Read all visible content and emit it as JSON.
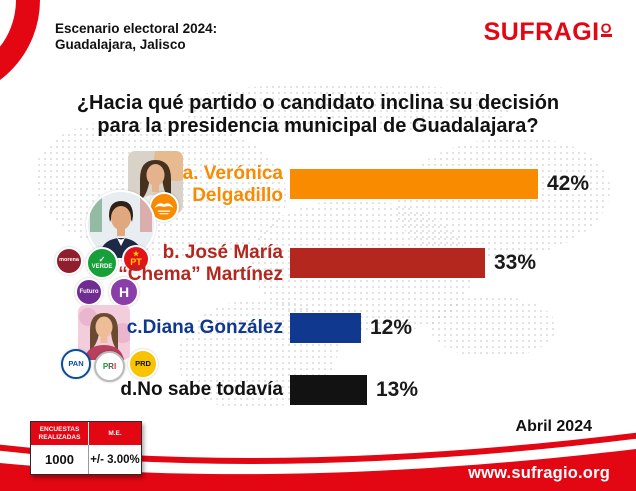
{
  "header": {
    "scenario_line1": "Escenario electoral 2024:",
    "scenario_line2": "Guadalajara, Jalisco",
    "logo_main": "SUFRAGI",
    "logo_o": "o",
    "logo_full": "SUFRAGIO"
  },
  "question": {
    "line1": "¿Hacia qué partido o candidato inclina su decisión",
    "line2": "para la presidencia municipal de Guadalajara?"
  },
  "chart_data": {
    "type": "bar",
    "orientation": "horizontal",
    "title": "¿Hacia qué partido o candidato inclina su decisión para la presidencia municipal de Guadalajara?",
    "categories": [
      "a. Verónica Delgadillo",
      "b. José María “Chema” Martínez",
      "c.Diana González",
      "d.No sabe todavía"
    ],
    "values": [
      42,
      33,
      12,
      13
    ],
    "value_labels": [
      "42%",
      "33%",
      "12%",
      "13%"
    ],
    "bar_colors": [
      "#F98B00",
      "#B3271E",
      "#10388F",
      "#121212"
    ],
    "xlim": [
      0,
      50
    ],
    "grid": false,
    "legend_position": "none"
  },
  "rows": [
    {
      "label_line1": "a. Verónica",
      "label_line2": "Delgadillo",
      "pct": "42%"
    },
    {
      "label_line1": "b. José María",
      "label_line2": "“Chema” Martínez",
      "pct": "33%"
    },
    {
      "label_line1": "c.Diana González",
      "label_line2": "",
      "pct": "12%"
    },
    {
      "label_line1": "d.No sabe todavía",
      "label_line2": "",
      "pct": "13%"
    }
  ],
  "badges": {
    "mc": {
      "label": "MOVIMIENTO CIUDADANO",
      "bg": "#F98B00"
    },
    "morena": {
      "label": "morena",
      "bg": "#8F1E2F"
    },
    "verde": {
      "check": "✓",
      "label": "VERDE",
      "bg": "#17A038"
    },
    "pt": {
      "star": "★",
      "label": "PT",
      "bg": "#E3121A",
      "fg": "#F9D900"
    },
    "futuro": {
      "label": "Futuro",
      "bg": "#6F2C91"
    },
    "hagamos": {
      "label": "H",
      "bg": "#8A3FA8"
    },
    "pan": {
      "label": "PAN",
      "bg": "#FFFFFF",
      "fg": "#0A4E9B"
    },
    "pri": {
      "p": "P",
      "r": "R",
      "i": "I",
      "bg": "#FFFFFF"
    },
    "prd": {
      "label": "PRD",
      "bg": "#F8C300",
      "fg": "#111111"
    }
  },
  "table": {
    "headers": [
      "ENCUESTAS REALIZADAS",
      "M.E."
    ],
    "values": [
      "1000",
      "+/- 3.00%"
    ]
  },
  "date_label": "Abril 2024",
  "footer": {
    "url": "www.sufragio.org"
  },
  "colors": {
    "brand_red": "#E30613",
    "text": "#1a1a1a"
  }
}
